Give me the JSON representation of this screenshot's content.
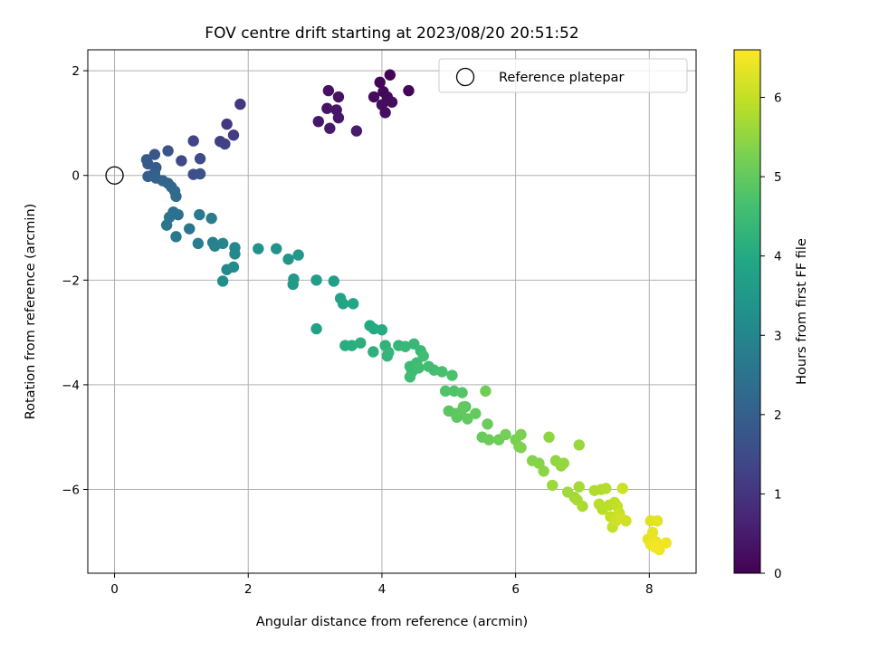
{
  "chart_data": {
    "type": "scatter",
    "title": "FOV centre drift starting at 2023/08/20 20:51:52",
    "xlabel": "Angular distance from reference (arcmin)",
    "ylabel": "Rotation from reference (arcmin)",
    "xlim": [
      -0.4,
      8.7
    ],
    "ylim": [
      -7.6,
      2.4
    ],
    "xticks": [
      0,
      2,
      4,
      6,
      8
    ],
    "yticks": [
      -6,
      -4,
      -2,
      0,
      2
    ],
    "xtick_labels": [
      "0",
      "2",
      "4",
      "6",
      "8"
    ],
    "ytick_labels": [
      "−6",
      "−4",
      "−2",
      "0",
      "2"
    ],
    "grid": true,
    "legend": {
      "location": "top-right",
      "entries": [
        "Reference platepar"
      ]
    },
    "reference_point": {
      "x": 0,
      "y": 0,
      "label": "Reference platepar"
    },
    "colorbar": {
      "label": "Hours from first FF file",
      "range": [
        0,
        6.6
      ],
      "ticks": [
        0,
        1,
        2,
        3,
        4,
        5,
        6
      ],
      "tick_labels": [
        "0",
        "1",
        "2",
        "3",
        "4",
        "5",
        "6"
      ],
      "colormap": "viridis"
    },
    "points": [
      {
        "x": 4.12,
        "y": 1.92,
        "h": 0.05
      },
      {
        "x": 3.97,
        "y": 1.78,
        "h": 0.08
      },
      {
        "x": 4.4,
        "y": 1.62,
        "h": 0.1
      },
      {
        "x": 4.02,
        "y": 1.6,
        "h": 0.12
      },
      {
        "x": 4.08,
        "y": 1.5,
        "h": 0.15
      },
      {
        "x": 3.88,
        "y": 1.5,
        "h": 0.18
      },
      {
        "x": 4.15,
        "y": 1.4,
        "h": 0.2
      },
      {
        "x": 4.0,
        "y": 1.35,
        "h": 0.22
      },
      {
        "x": 4.05,
        "y": 1.2,
        "h": 0.25
      },
      {
        "x": 3.2,
        "y": 1.62,
        "h": 0.3
      },
      {
        "x": 3.35,
        "y": 1.5,
        "h": 0.32
      },
      {
        "x": 3.18,
        "y": 1.28,
        "h": 0.35
      },
      {
        "x": 3.32,
        "y": 1.25,
        "h": 0.38
      },
      {
        "x": 3.35,
        "y": 1.1,
        "h": 0.4
      },
      {
        "x": 3.05,
        "y": 1.03,
        "h": 0.42
      },
      {
        "x": 3.22,
        "y": 0.9,
        "h": 0.45
      },
      {
        "x": 3.62,
        "y": 0.85,
        "h": 0.5
      },
      {
        "x": 1.88,
        "y": 1.36,
        "h": 1.05
      },
      {
        "x": 1.68,
        "y": 0.98,
        "h": 1.1
      },
      {
        "x": 1.78,
        "y": 0.77,
        "h": 1.15
      },
      {
        "x": 1.58,
        "y": 0.65,
        "h": 1.2
      },
      {
        "x": 1.65,
        "y": 0.6,
        "h": 1.25
      },
      {
        "x": 1.18,
        "y": 0.66,
        "h": 1.35
      },
      {
        "x": 1.0,
        "y": 0.28,
        "h": 1.45
      },
      {
        "x": 1.28,
        "y": 0.32,
        "h": 1.5
      },
      {
        "x": 1.18,
        "y": 0.02,
        "h": 1.6
      },
      {
        "x": 1.28,
        "y": 0.03,
        "h": 1.62
      },
      {
        "x": 0.8,
        "y": 0.47,
        "h": 1.7
      },
      {
        "x": 0.6,
        "y": 0.4,
        "h": 1.75
      },
      {
        "x": 0.48,
        "y": 0.3,
        "h": 1.8
      },
      {
        "x": 0.5,
        "y": 0.22,
        "h": 1.85
      },
      {
        "x": 0.62,
        "y": 0.15,
        "h": 1.9
      },
      {
        "x": 0.6,
        "y": 0.05,
        "h": 1.95
      },
      {
        "x": 0.5,
        "y": -0.02,
        "h": 2.0
      },
      {
        "x": 0.62,
        "y": -0.05,
        "h": 2.05
      },
      {
        "x": 0.72,
        "y": -0.1,
        "h": 2.1
      },
      {
        "x": 0.8,
        "y": -0.15,
        "h": 2.15
      },
      {
        "x": 0.85,
        "y": -0.22,
        "h": 2.2
      },
      {
        "x": 0.9,
        "y": -0.3,
        "h": 2.25
      },
      {
        "x": 0.92,
        "y": -0.4,
        "h": 2.3
      },
      {
        "x": 0.88,
        "y": -0.7,
        "h": 2.4
      },
      {
        "x": 0.95,
        "y": -0.75,
        "h": 2.45
      },
      {
        "x": 0.82,
        "y": -0.8,
        "h": 2.5
      },
      {
        "x": 0.78,
        "y": -0.95,
        "h": 2.55
      },
      {
        "x": 1.12,
        "y": -1.02,
        "h": 2.6
      },
      {
        "x": 0.92,
        "y": -1.17,
        "h": 2.65
      },
      {
        "x": 1.27,
        "y": -0.75,
        "h": 2.7
      },
      {
        "x": 1.45,
        "y": -0.82,
        "h": 2.75
      },
      {
        "x": 1.25,
        "y": -1.3,
        "h": 2.8
      },
      {
        "x": 1.47,
        "y": -1.28,
        "h": 2.85
      },
      {
        "x": 1.5,
        "y": -1.35,
        "h": 2.9
      },
      {
        "x": 1.62,
        "y": -1.3,
        "h": 2.95
      },
      {
        "x": 1.8,
        "y": -1.38,
        "h": 3.0
      },
      {
        "x": 1.8,
        "y": -1.5,
        "h": 3.05
      },
      {
        "x": 1.68,
        "y": -1.8,
        "h": 3.1
      },
      {
        "x": 1.78,
        "y": -1.75,
        "h": 3.15
      },
      {
        "x": 1.62,
        "y": -2.02,
        "h": 3.2
      },
      {
        "x": 2.15,
        "y": -1.4,
        "h": 3.3
      },
      {
        "x": 2.42,
        "y": -1.4,
        "h": 3.35
      },
      {
        "x": 2.6,
        "y": -1.6,
        "h": 3.45
      },
      {
        "x": 2.75,
        "y": -1.52,
        "h": 3.5
      },
      {
        "x": 2.68,
        "y": -1.98,
        "h": 3.55
      },
      {
        "x": 2.67,
        "y": -2.08,
        "h": 3.6
      },
      {
        "x": 3.02,
        "y": -2.0,
        "h": 3.65
      },
      {
        "x": 3.28,
        "y": -2.02,
        "h": 3.7
      },
      {
        "x": 3.02,
        "y": -2.93,
        "h": 3.75
      },
      {
        "x": 3.38,
        "y": -2.35,
        "h": 3.8
      },
      {
        "x": 3.42,
        "y": -2.45,
        "h": 3.85
      },
      {
        "x": 3.57,
        "y": -2.45,
        "h": 3.9
      },
      {
        "x": 3.82,
        "y": -2.87,
        "h": 3.95
      },
      {
        "x": 3.88,
        "y": -2.93,
        "h": 4.0
      },
      {
        "x": 4.0,
        "y": -2.95,
        "h": 4.05
      },
      {
        "x": 3.45,
        "y": -3.25,
        "h": 4.1
      },
      {
        "x": 3.55,
        "y": -3.25,
        "h": 4.12
      },
      {
        "x": 3.68,
        "y": -3.2,
        "h": 4.15
      },
      {
        "x": 3.87,
        "y": -3.37,
        "h": 4.2
      },
      {
        "x": 4.05,
        "y": -3.25,
        "h": 4.25
      },
      {
        "x": 4.08,
        "y": -3.45,
        "h": 4.3
      },
      {
        "x": 4.1,
        "y": -3.38,
        "h": 4.32
      },
      {
        "x": 4.25,
        "y": -3.25,
        "h": 4.35
      },
      {
        "x": 4.35,
        "y": -3.27,
        "h": 4.38
      },
      {
        "x": 4.48,
        "y": -3.22,
        "h": 4.4
      },
      {
        "x": 4.58,
        "y": -3.35,
        "h": 4.42
      },
      {
        "x": 4.42,
        "y": -3.65,
        "h": 4.45
      },
      {
        "x": 4.45,
        "y": -3.75,
        "h": 4.48
      },
      {
        "x": 4.42,
        "y": -3.85,
        "h": 4.5
      },
      {
        "x": 4.52,
        "y": -3.58,
        "h": 4.52
      },
      {
        "x": 4.55,
        "y": -3.68,
        "h": 4.55
      },
      {
        "x": 4.62,
        "y": -3.45,
        "h": 4.57
      },
      {
        "x": 4.7,
        "y": -3.65,
        "h": 4.6
      },
      {
        "x": 4.78,
        "y": -3.72,
        "h": 4.62
      },
      {
        "x": 4.9,
        "y": -3.75,
        "h": 4.65
      },
      {
        "x": 5.05,
        "y": -3.82,
        "h": 4.7
      },
      {
        "x": 5.08,
        "y": -4.12,
        "h": 4.75
      },
      {
        "x": 4.95,
        "y": -4.12,
        "h": 4.78
      },
      {
        "x": 5.2,
        "y": -4.15,
        "h": 4.8
      },
      {
        "x": 5.25,
        "y": -4.42,
        "h": 4.85
      },
      {
        "x": 5.0,
        "y": -4.5,
        "h": 4.88
      },
      {
        "x": 5.1,
        "y": -4.55,
        "h": 4.9
      },
      {
        "x": 5.12,
        "y": -4.62,
        "h": 4.92
      },
      {
        "x": 5.18,
        "y": -4.52,
        "h": 4.95
      },
      {
        "x": 5.28,
        "y": -4.65,
        "h": 4.98
      },
      {
        "x": 5.22,
        "y": -4.42,
        "h": 5.0
      },
      {
        "x": 5.4,
        "y": -4.55,
        "h": 5.02
      },
      {
        "x": 5.5,
        "y": -5.0,
        "h": 5.05
      },
      {
        "x": 5.58,
        "y": -4.75,
        "h": 5.08
      },
      {
        "x": 5.6,
        "y": -5.05,
        "h": 5.1
      },
      {
        "x": 5.75,
        "y": -5.05,
        "h": 5.12
      },
      {
        "x": 5.55,
        "y": -4.12,
        "h": 5.15
      },
      {
        "x": 5.85,
        "y": -4.95,
        "h": 5.2
      },
      {
        "x": 6.0,
        "y": -5.05,
        "h": 5.25
      },
      {
        "x": 6.08,
        "y": -4.95,
        "h": 5.28
      },
      {
        "x": 6.05,
        "y": -5.18,
        "h": 5.3
      },
      {
        "x": 6.08,
        "y": -5.2,
        "h": 5.32
      },
      {
        "x": 6.25,
        "y": -5.45,
        "h": 5.38
      },
      {
        "x": 6.35,
        "y": -5.5,
        "h": 5.42
      },
      {
        "x": 6.42,
        "y": -5.65,
        "h": 5.45
      },
      {
        "x": 6.5,
        "y": -5.0,
        "h": 5.48
      },
      {
        "x": 6.6,
        "y": -5.45,
        "h": 5.5
      },
      {
        "x": 6.68,
        "y": -5.55,
        "h": 5.52
      },
      {
        "x": 6.72,
        "y": -5.5,
        "h": 5.55
      },
      {
        "x": 6.95,
        "y": -5.15,
        "h": 5.58
      },
      {
        "x": 6.55,
        "y": -5.92,
        "h": 5.6
      },
      {
        "x": 6.78,
        "y": -6.05,
        "h": 5.65
      },
      {
        "x": 6.88,
        "y": -6.15,
        "h": 5.68
      },
      {
        "x": 6.95,
        "y": -5.95,
        "h": 5.7
      },
      {
        "x": 6.92,
        "y": -6.2,
        "h": 5.72
      },
      {
        "x": 7.0,
        "y": -6.32,
        "h": 5.75
      },
      {
        "x": 7.18,
        "y": -6.02,
        "h": 5.8
      },
      {
        "x": 7.28,
        "y": -6.0,
        "h": 5.82
      },
      {
        "x": 7.35,
        "y": -5.98,
        "h": 5.85
      },
      {
        "x": 7.25,
        "y": -6.28,
        "h": 5.88
      },
      {
        "x": 7.3,
        "y": -6.38,
        "h": 5.9
      },
      {
        "x": 7.4,
        "y": -6.3,
        "h": 5.92
      },
      {
        "x": 7.48,
        "y": -6.25,
        "h": 5.95
      },
      {
        "x": 7.52,
        "y": -6.32,
        "h": 5.97
      },
      {
        "x": 7.42,
        "y": -6.52,
        "h": 6.0
      },
      {
        "x": 7.45,
        "y": -6.72,
        "h": 6.02
      },
      {
        "x": 7.55,
        "y": -6.45,
        "h": 6.05
      },
      {
        "x": 7.6,
        "y": -5.98,
        "h": 6.08
      },
      {
        "x": 7.65,
        "y": -6.6,
        "h": 6.1
      },
      {
        "x": 7.5,
        "y": -6.6,
        "h": 6.12
      },
      {
        "x": 7.58,
        "y": -6.55,
        "h": 6.15
      },
      {
        "x": 8.02,
        "y": -6.6,
        "h": 6.3
      },
      {
        "x": 8.12,
        "y": -6.6,
        "h": 6.32
      },
      {
        "x": 8.05,
        "y": -6.82,
        "h": 6.35
      },
      {
        "x": 7.98,
        "y": -6.95,
        "h": 6.38
      },
      {
        "x": 8.02,
        "y": -7.05,
        "h": 6.4
      },
      {
        "x": 8.1,
        "y": -7.0,
        "h": 6.42
      },
      {
        "x": 8.15,
        "y": -7.15,
        "h": 6.45
      },
      {
        "x": 8.25,
        "y": -7.02,
        "h": 6.48
      },
      {
        "x": 8.08,
        "y": -7.1,
        "h": 6.5
      }
    ]
  }
}
